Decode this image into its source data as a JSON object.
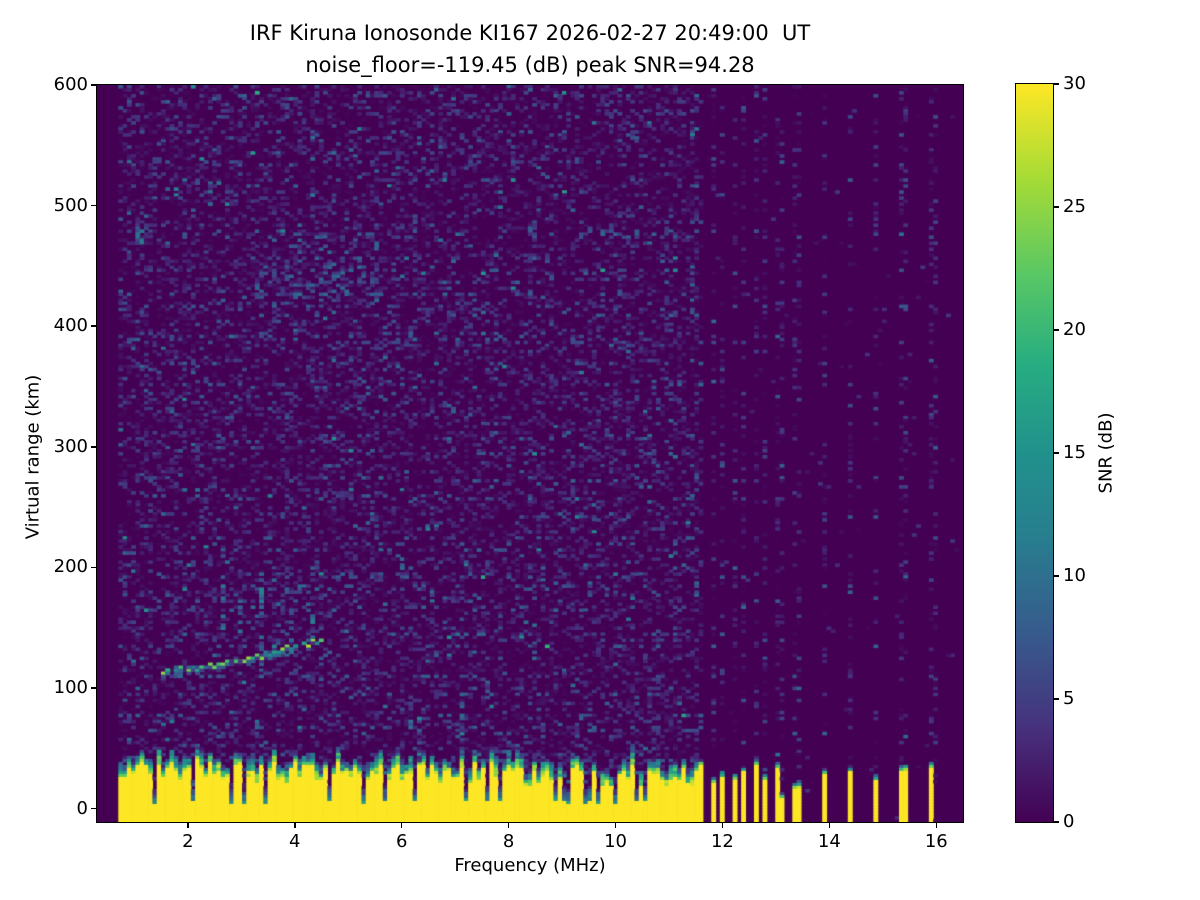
{
  "figure": {
    "title_line1": "IRF Kiruna Ionosonde KI167 2026-02-27 20:49:00  UT",
    "title_line2": "noise_floor=-119.45 (dB) peak SNR=94.28",
    "xlabel": "Frequency (MHz)",
    "ylabel": "Virtual range (km)",
    "colorbar_label": "SNR (dB)"
  },
  "chart_data": {
    "type": "heatmap",
    "title": "IRF Kiruna Ionosonde KI167 2026-02-27 20:49:00  UT",
    "subtitle": "noise_floor=-119.45 (dB) peak SNR=94.28",
    "station": "KI167",
    "timestamp_ut": "2026-02-27 20:49:00",
    "noise_floor_db": -119.45,
    "peak_snr_db": 94.28,
    "xlabel": "Frequency (MHz)",
    "ylabel": "Virtual range (km)",
    "xlim": [
      0.3,
      16.5
    ],
    "ylim": [
      -11,
      600
    ],
    "xticks": [
      2,
      4,
      6,
      8,
      10,
      12,
      14,
      16
    ],
    "yticks": [
      0,
      100,
      200,
      300,
      400,
      500,
      600
    ],
    "colorbar": {
      "label": "SNR (dB)",
      "min": 0,
      "max": 30,
      "ticks": [
        0,
        5,
        10,
        15,
        20,
        25,
        30
      ],
      "colormap": "viridis"
    },
    "colors": {
      "background": "#440154",
      "peak": "#fde725"
    },
    "features": {
      "resolution": {
        "df_mhz": 0.08,
        "dr_km": 2.5
      },
      "sweep_start_mhz": 0.72,
      "continuous_band_end_mhz": 11.6,
      "ground_clutter": {
        "top_km_mean": 30,
        "top_km_slope_per_mhz": -0.45,
        "top_km_jitter": 9,
        "fringe_km_mean": 9,
        "fringe_km_jitter": 9,
        "snr_db": 30,
        "notch_freqs_mhz": [
          1.4,
          2.1,
          2.8,
          3.05,
          4.65,
          5.3,
          6.25,
          7.2,
          7.85,
          8.9,
          10.0,
          10.6
        ],
        "notch_prob": 0.05
      },
      "echo_trace": {
        "snr_db_range": [
          12,
          26
        ],
        "points": [
          [
            1.5,
            112
          ],
          [
            1.58,
            114
          ],
          [
            1.66,
            113
          ],
          [
            1.74,
            115
          ],
          [
            1.82,
            114
          ],
          [
            1.9,
            116
          ],
          [
            1.98,
            115
          ],
          [
            2.06,
            116
          ],
          [
            2.14,
            115
          ],
          [
            2.22,
            117
          ],
          [
            2.3,
            116
          ],
          [
            2.38,
            118
          ],
          [
            2.46,
            117
          ],
          [
            2.54,
            119
          ],
          [
            2.62,
            120
          ],
          [
            2.7,
            121
          ],
          [
            2.78,
            122
          ],
          [
            2.86,
            121
          ],
          [
            2.94,
            122
          ],
          [
            3.02,
            121
          ],
          [
            3.1,
            124
          ],
          [
            3.18,
            123
          ],
          [
            3.26,
            126
          ],
          [
            3.34,
            125
          ],
          [
            3.42,
            128
          ],
          [
            3.5,
            127
          ],
          [
            3.58,
            129
          ],
          [
            3.66,
            130
          ],
          [
            3.74,
            131
          ],
          [
            3.82,
            133
          ],
          [
            3.9,
            132
          ],
          [
            3.98,
            133
          ],
          [
            4.06,
            134
          ],
          [
            4.14,
            136
          ],
          [
            4.22,
            135
          ],
          [
            4.3,
            138
          ],
          [
            4.38,
            137
          ],
          [
            4.46,
            140
          ]
        ],
        "bright_segments_mhz": [
          [
            2.88,
            3.1
          ],
          [
            4.18,
            4.35
          ]
        ]
      },
      "spread_streaks": [
        [
          2.65,
          128,
          185
        ],
        [
          3.0,
          130,
          175
        ],
        [
          3.35,
          128,
          205
        ],
        [
          3.65,
          130,
          185
        ],
        [
          3.9,
          132,
          170
        ],
        [
          4.3,
          135,
          195
        ],
        [
          6.3,
          38,
          75
        ],
        [
          7.15,
          40,
          95
        ]
      ],
      "interference_stripes": {
        "cluster_mhz": [
          11.63,
          11.84,
          12.04,
          12.24,
          12.44,
          12.64,
          12.84,
          13.04
        ],
        "cluster_top_km_mean": 28,
        "cluster_top_km_jitter": 8,
        "sparse": [
          [
            13.15,
            6
          ],
          [
            13.42,
            16
          ],
          [
            13.92,
            26
          ],
          [
            14.42,
            28
          ],
          [
            14.92,
            22
          ],
          [
            15.42,
            30
          ],
          [
            15.97,
            32
          ]
        ],
        "stripe_halfwidth_mhz": 0.045,
        "tip_fringe_km": 6
      },
      "noise_patches": [
        {
          "f": [
            3.1,
            5.6
          ],
          "km": [
            415,
            478
          ],
          "density": 0.3,
          "max_db": 11
        },
        {
          "f": [
            1.0,
            1.3
          ],
          "km": [
            468,
            488
          ],
          "density": 0.45,
          "max_db": 13
        }
      ],
      "background_noise": {
        "speckle_prob": 0.55,
        "max_db": 7,
        "rare_prob": 0.02,
        "rare_extra_db": 7,
        "stripe_column_prob": 0.3,
        "off_column_prob": 0.012
      }
    }
  }
}
